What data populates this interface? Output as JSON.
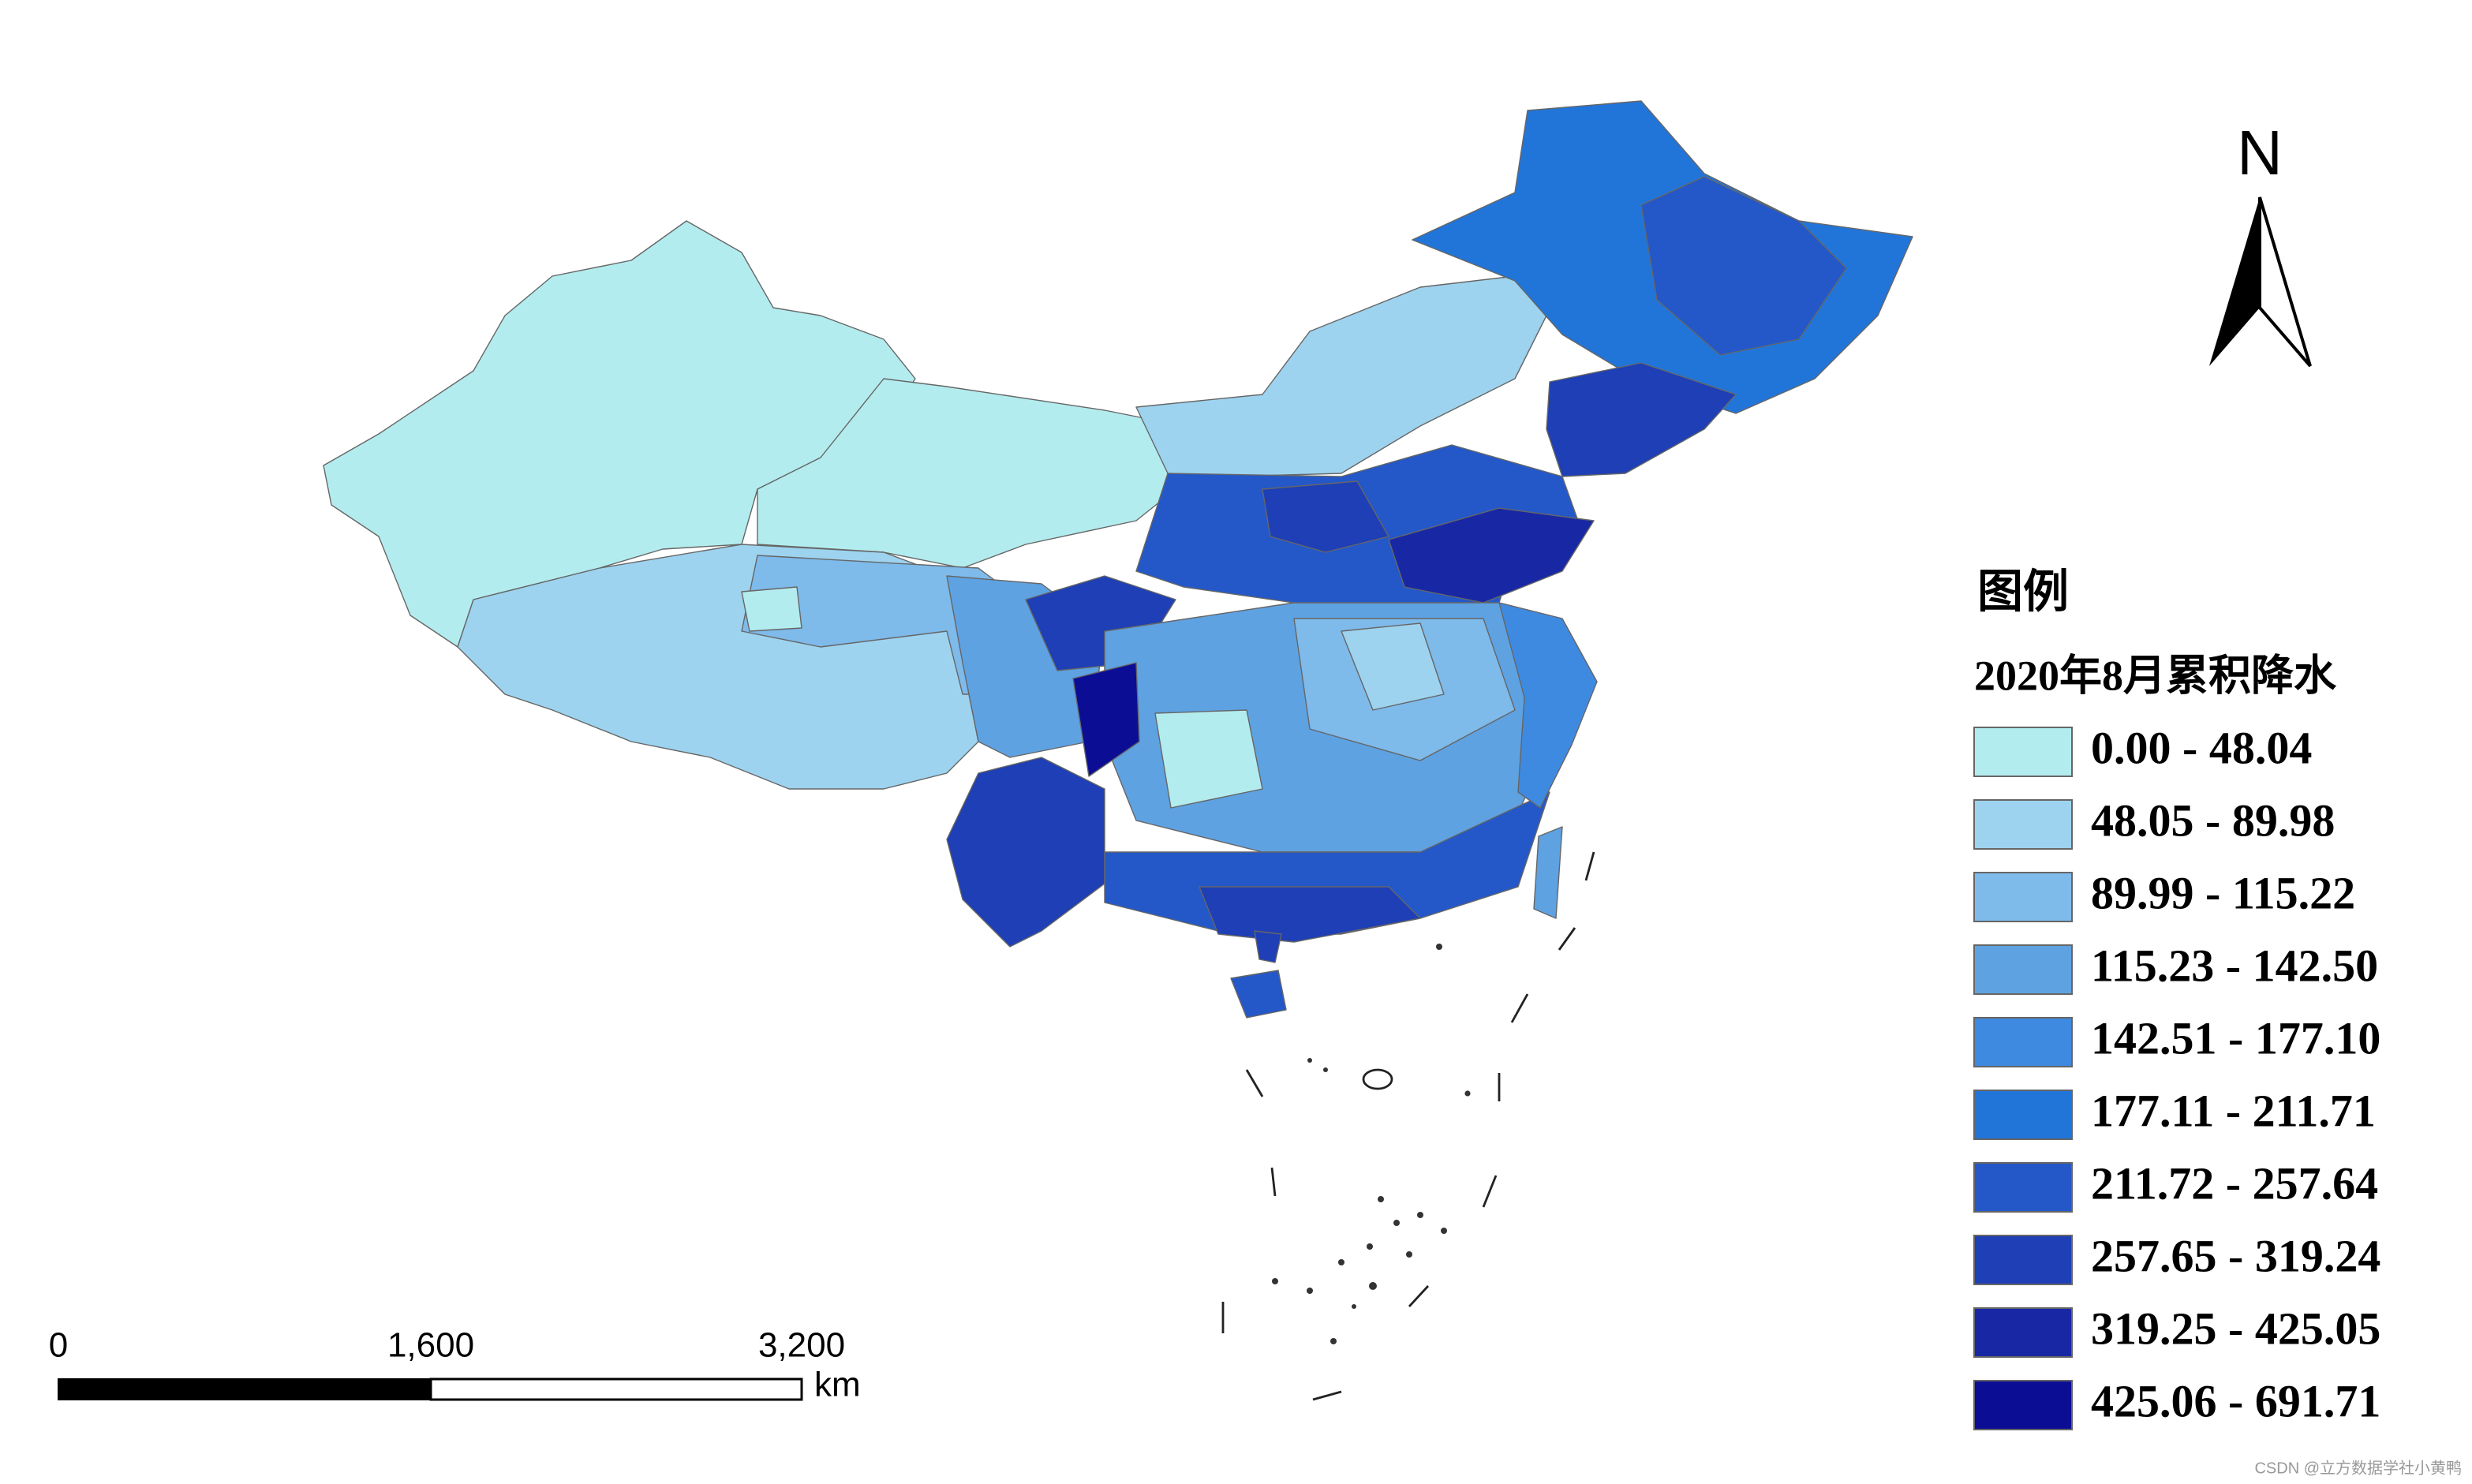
{
  "legend": {
    "title": "图例",
    "subtitle": "2020年8月累积降水",
    "classes": [
      {
        "label": "0.00 - 48.04",
        "color": "#b3ecee"
      },
      {
        "label": "48.05 - 89.98",
        "color": "#9dd3ef"
      },
      {
        "label": "89.99 - 115.22",
        "color": "#7ebaea"
      },
      {
        "label": "115.23 - 142.50",
        "color": "#5ea2e2"
      },
      {
        "label": "142.51 - 177.10",
        "color": "#3e8ae0"
      },
      {
        "label": "177.11 - 211.71",
        "color": "#2175d9"
      },
      {
        "label": "211.72 - 257.64",
        "color": "#2458c8"
      },
      {
        "label": "257.65 - 319.24",
        "color": "#1e3fb5"
      },
      {
        "label": "319.25 - 425.05",
        "color": "#1828a4"
      },
      {
        "label": "425.06 - 691.71",
        "color": "#0b0e94"
      }
    ]
  },
  "north_arrow": {
    "label": "N"
  },
  "scale_bar": {
    "labels": [
      "0",
      "1,600",
      "3,200"
    ],
    "unit": "km"
  },
  "watermark": "CSDN @立方数据学社小黄鸭"
}
